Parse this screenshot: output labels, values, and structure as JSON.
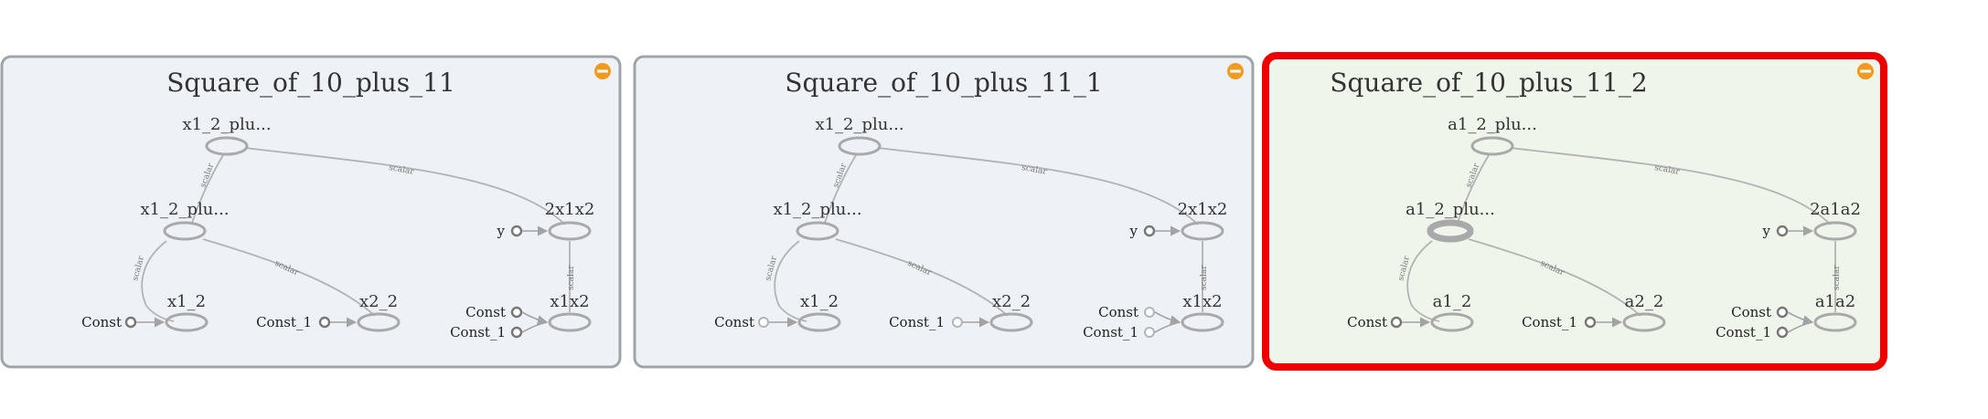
{
  "colors": {
    "panel_fill": "#eef1f6",
    "panel_fill_selected": "#f0f5ec",
    "panel_border": "#a0a4a8",
    "panel_border_selected": "#ee0000",
    "collapse_button": "#f29a1d"
  },
  "panels": [
    {
      "title": "Square_of_10_plus_11",
      "selected": false,
      "collapse_icon": "minus-circle-icon",
      "nodes": {
        "top": "x1_2_plu...",
        "mid": "x1_2_plu...",
        "right": "2x1x2",
        "y_input": "y",
        "leaf_a": "x1_2",
        "leaf_b": "x2_2",
        "leaf_c": "x1x2"
      },
      "const_labels": {
        "a": "Const",
        "b": "Const_1",
        "c1": "Const",
        "c2": "Const_1"
      },
      "edge_labels": {
        "top_mid": "scalar",
        "top_right": "scalar",
        "mid_a": "scalar",
        "mid_b": "scalar",
        "right_c": "scalar"
      }
    },
    {
      "title": "Square_of_10_plus_11_1",
      "selected": false,
      "collapse_icon": "minus-circle-icon",
      "nodes": {
        "top": "x1_2_plu...",
        "mid": "x1_2_plu...",
        "right": "2x1x2",
        "y_input": "y",
        "leaf_a": "x1_2",
        "leaf_b": "x2_2",
        "leaf_c": "x1x2"
      },
      "const_labels": {
        "a": "Const",
        "b": "Const_1",
        "c1": "Const",
        "c2": "Const_1"
      },
      "edge_labels": {
        "top_mid": "scalar",
        "top_right": "scalar",
        "mid_a": "scalar",
        "mid_b": "scalar",
        "right_c": "scalar"
      }
    },
    {
      "title": "Square_of_10_plus_11_2",
      "selected": true,
      "collapse_icon": "minus-circle-icon",
      "nodes": {
        "top": "a1_2_plu...",
        "mid": "a1_2_plu...",
        "right": "2a1a2",
        "y_input": "y",
        "leaf_a": "a1_2",
        "leaf_b": "a2_2",
        "leaf_c": "a1a2"
      },
      "const_labels": {
        "a": "Const",
        "b": "Const_1",
        "c1": "Const",
        "c2": "Const_1"
      },
      "edge_labels": {
        "top_mid": "scalar",
        "top_right": "scalar",
        "mid_a": "scalar",
        "mid_b": "scalar",
        "right_c": "scalar"
      }
    }
  ]
}
